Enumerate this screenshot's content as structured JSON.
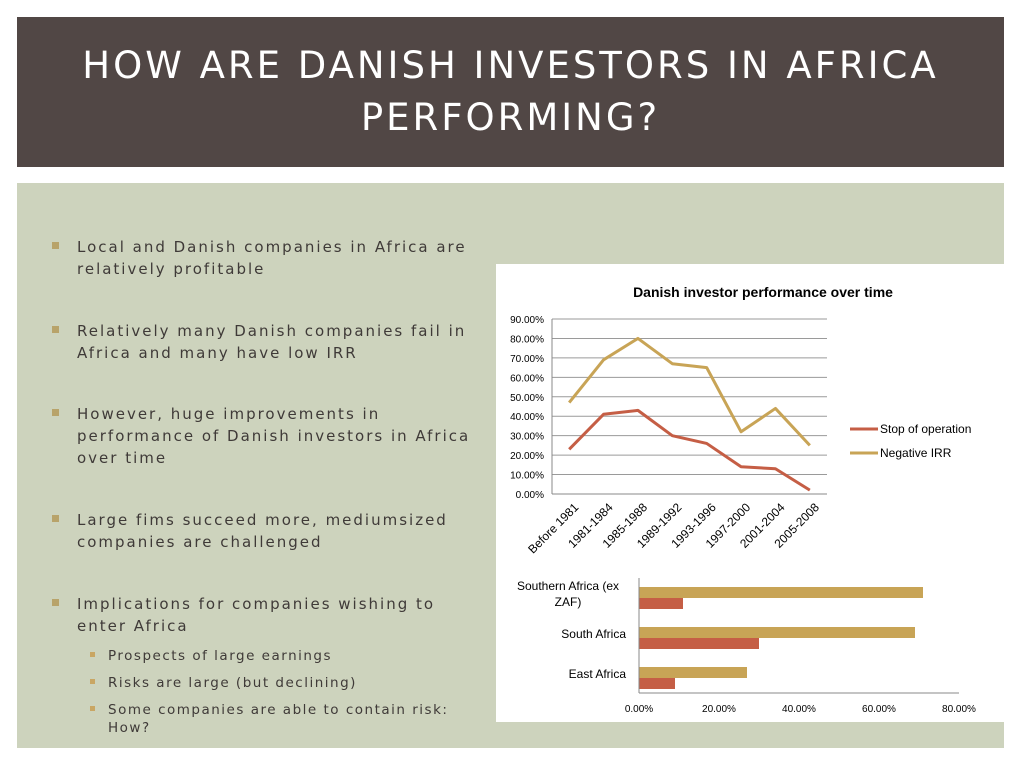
{
  "slide": {
    "title": "HOW ARE DANISH INVESTORS IN AFRICA PERFORMING?"
  },
  "bullets": [
    {
      "text": "Local and Danish companies in Africa are relatively profitable"
    },
    {
      "text": "Relatively many Danish companies fail in Africa and many have low IRR"
    },
    {
      "text": "However, huge improvements in performance of Danish investors in Africa over time"
    },
    {
      "text": "Large fims succeed more, mediumsized companies are challenged"
    },
    {
      "text": "Implications for companies wishing to enter Africa",
      "sub": [
        "Prospects of large earnings",
        "Risks are large (but declining)",
        "Some companies are able to contain risk: How?"
      ]
    }
  ],
  "colors": {
    "title_band": "#514745",
    "content_band": "#cdd3bd",
    "stop_series": "#c55e45",
    "irr_series": "#c8a456"
  },
  "chart_data": [
    {
      "type": "line",
      "title": "Danish investor performance over time",
      "categories": [
        "Before 1981",
        "1981-1984",
        "1985-1988",
        "1989-1992",
        "1993-1996",
        "1997-2000",
        "2001-2004",
        "2005-2008"
      ],
      "series": [
        {
          "name": "Stop of operation",
          "values": [
            0.23,
            0.41,
            0.43,
            0.3,
            0.26,
            0.14,
            0.13,
            0.02
          ]
        },
        {
          "name": "Negative IRR",
          "values": [
            0.47,
            0.69,
            0.8,
            0.67,
            0.65,
            0.32,
            0.44,
            0.25
          ]
        }
      ],
      "ylim": [
        0,
        0.9
      ],
      "yticks": [
        "0.00%",
        "10.00%",
        "20.00%",
        "30.00%",
        "40.00%",
        "50.00%",
        "60.00%",
        "70.00%",
        "80.00%",
        "90.00%"
      ],
      "legend": "right"
    },
    {
      "type": "bar",
      "orientation": "horizontal",
      "categories": [
        "Southern Africa (ex ZAF)",
        "South Africa",
        "East Africa"
      ],
      "series": [
        {
          "name": "Negative IRR",
          "values": [
            0.71,
            0.69,
            0.27
          ]
        },
        {
          "name": "Stop of operation",
          "values": [
            0.11,
            0.3,
            0.09
          ]
        }
      ],
      "xlim": [
        0,
        0.8
      ],
      "xticks": [
        "0.00%",
        "20.00%",
        "40.00%",
        "60.00%",
        "80.00%"
      ]
    }
  ]
}
